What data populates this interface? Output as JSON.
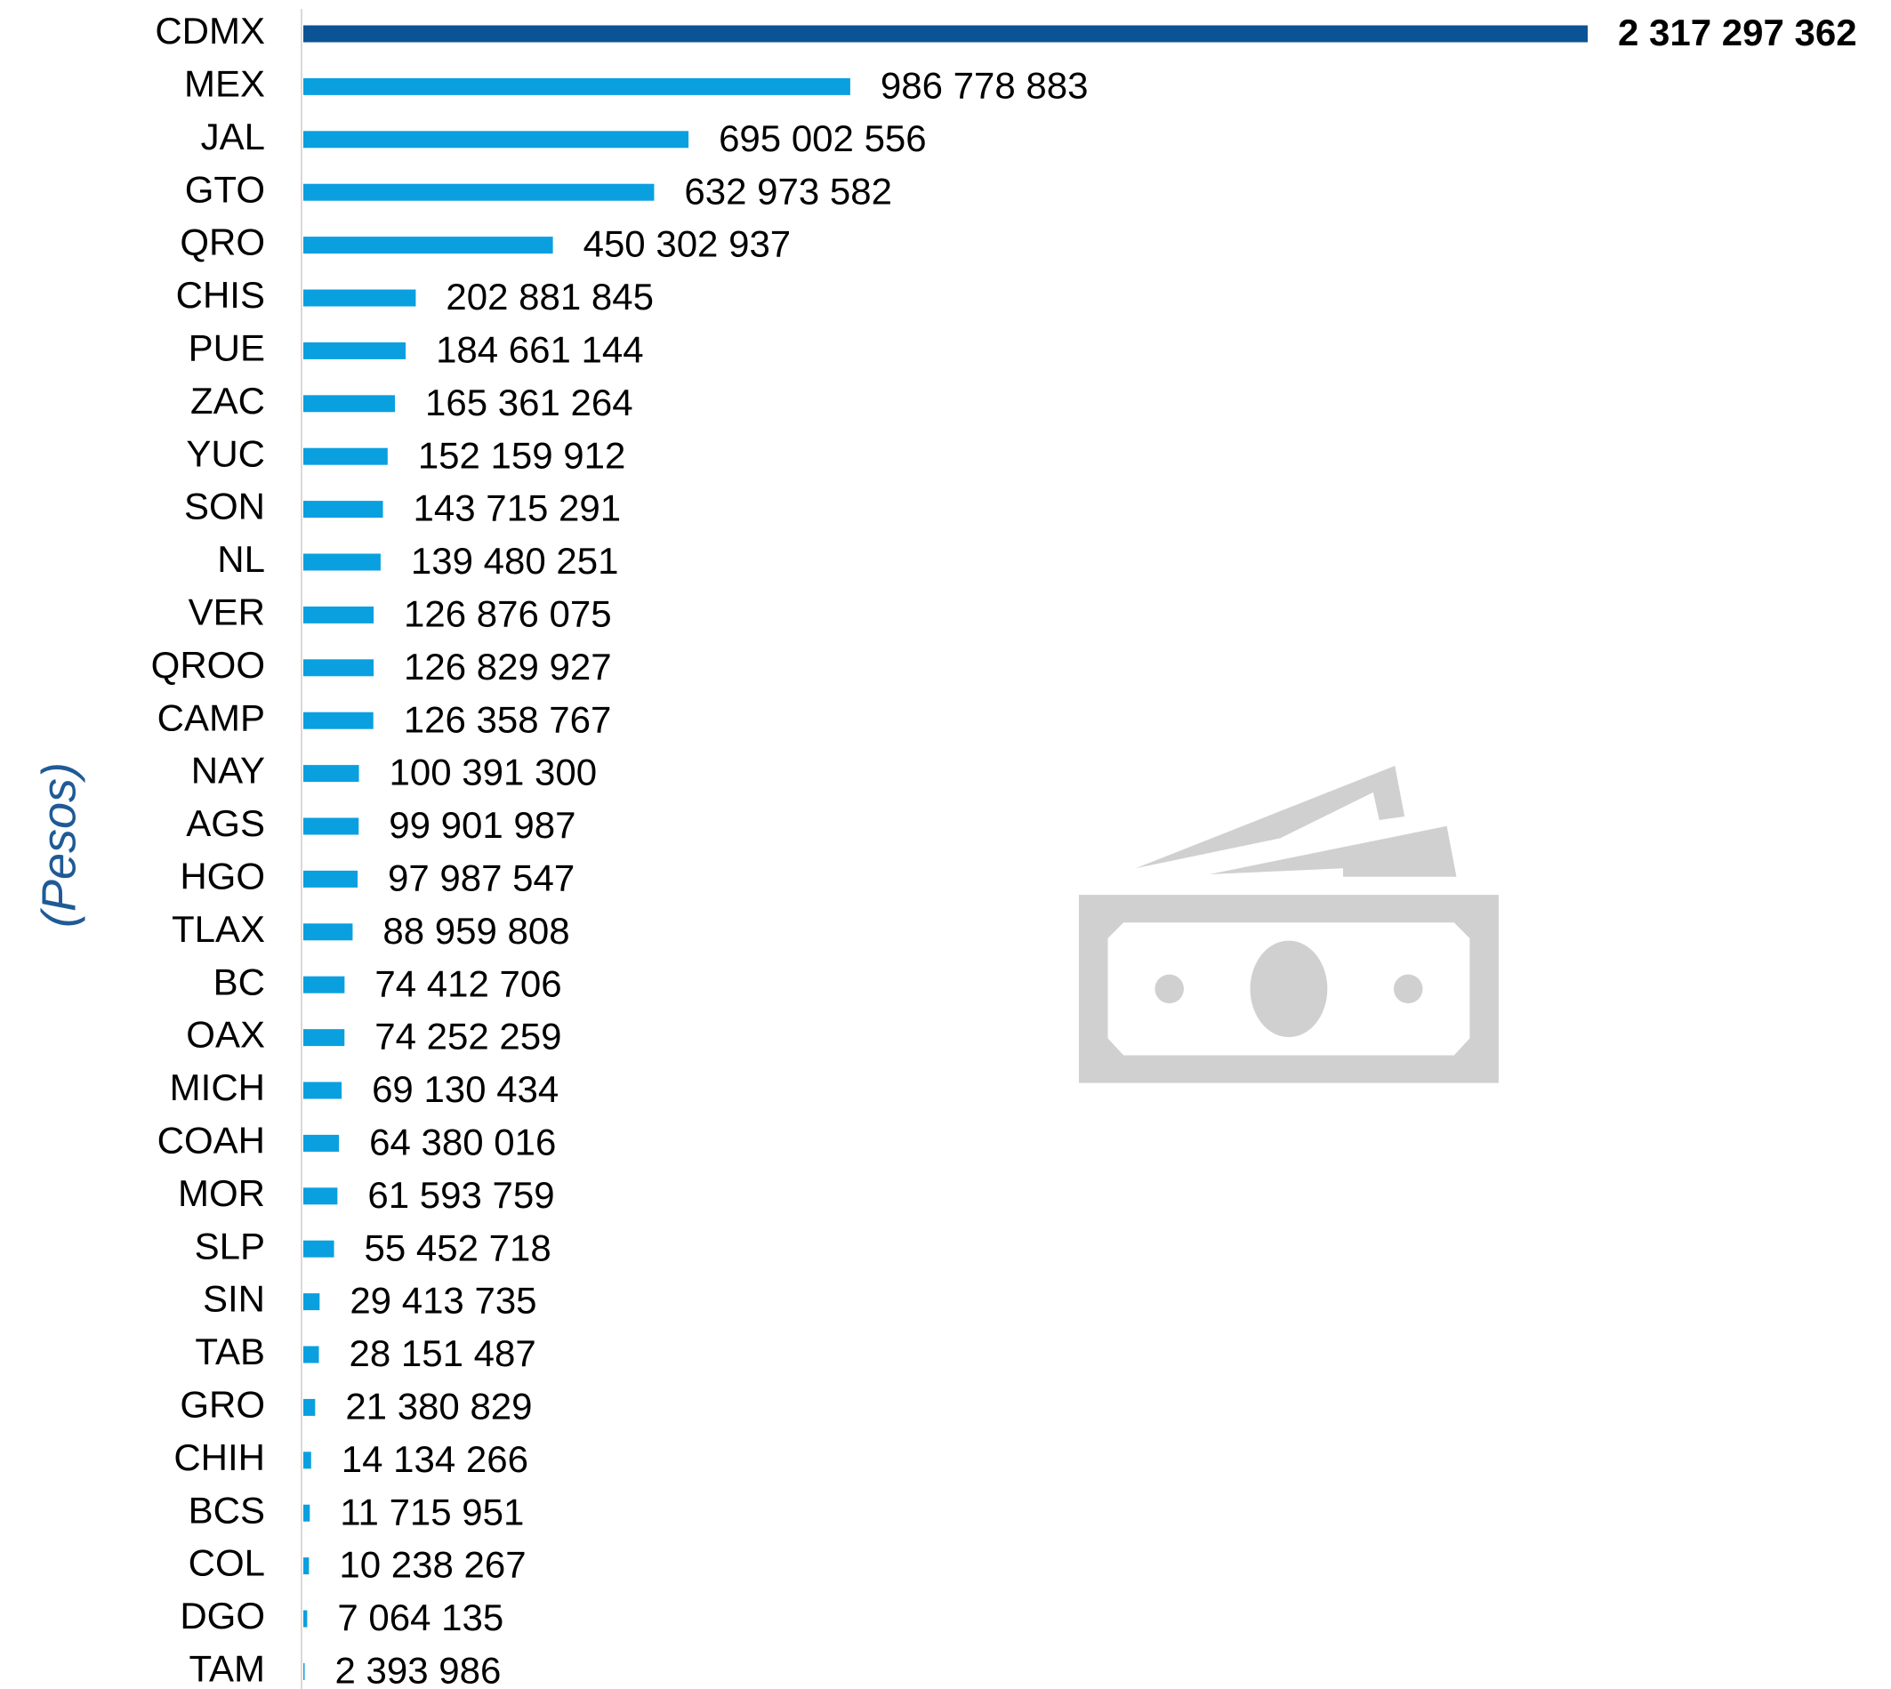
{
  "chart_data": {
    "type": "bar",
    "orientation": "horizontal",
    "y_label": "(Pesos)",
    "categories": [
      "CDMX",
      "MEX",
      "JAL",
      "GTO",
      "QRO",
      "CHIS",
      "PUE",
      "ZAC",
      "YUC",
      "SON",
      "NL",
      "VER",
      "QROO",
      "CAMP",
      "NAY",
      "AGS",
      "HGO",
      "TLAX",
      "BC",
      "OAX",
      "MICH",
      "COAH",
      "MOR",
      "SLP",
      "SIN",
      "TAB",
      "GRO",
      "CHIH",
      "BCS",
      "COL",
      "DGO",
      "TAM"
    ],
    "values": [
      2317297362,
      986778883,
      695002556,
      632973582,
      450302937,
      202881845,
      184661144,
      165361264,
      152159912,
      143715291,
      139480251,
      126876075,
      126829927,
      126358767,
      100391300,
      99901987,
      97987547,
      88959808,
      74412706,
      74252259,
      69130434,
      64380016,
      61593759,
      55452718,
      29413735,
      28151487,
      21380829,
      14134266,
      11715951,
      10238267,
      7064135,
      2393986
    ],
    "value_labels": [
      "2 317 297 362",
      "986 778 883",
      "695 002 556",
      "632 973 582",
      "450 302 937",
      "202 881 845",
      "184 661 144",
      "165 361 264",
      "152 159 912",
      "143 715 291",
      "139 480 251",
      "126 876 075",
      "126 829 927",
      "126 358 767",
      "100 391 300",
      "99 901 987",
      "97 987 547",
      "88 959 808",
      "74 412 706",
      "74 252 259",
      "69 130 434",
      "64 380 016",
      "61 593 759",
      "55 452 718",
      "29 413 735",
      "28 151 487",
      "21 380 829",
      "14 134 266",
      "11 715 951",
      "10 238 267",
      "7 064 135",
      "2 393 986"
    ],
    "colors": [
      "#0b5394",
      "#0aa0e0",
      "#0aa0e0",
      "#0aa0e0",
      "#0aa0e0",
      "#0aa0e0",
      "#0aa0e0",
      "#0aa0e0",
      "#0aa0e0",
      "#0aa0e0",
      "#0aa0e0",
      "#0aa0e0",
      "#0aa0e0",
      "#0aa0e0",
      "#0aa0e0",
      "#0aa0e0",
      "#0aa0e0",
      "#0aa0e0",
      "#0aa0e0",
      "#0aa0e0",
      "#0aa0e0",
      "#0aa0e0",
      "#0aa0e0",
      "#0aa0e0",
      "#0aa0e0",
      "#0aa0e0",
      "#0aa0e0",
      "#0aa0e0",
      "#0aa0e0",
      "#0aa0e0",
      "#0aa0e0",
      "#0aa0e0"
    ]
  }
}
